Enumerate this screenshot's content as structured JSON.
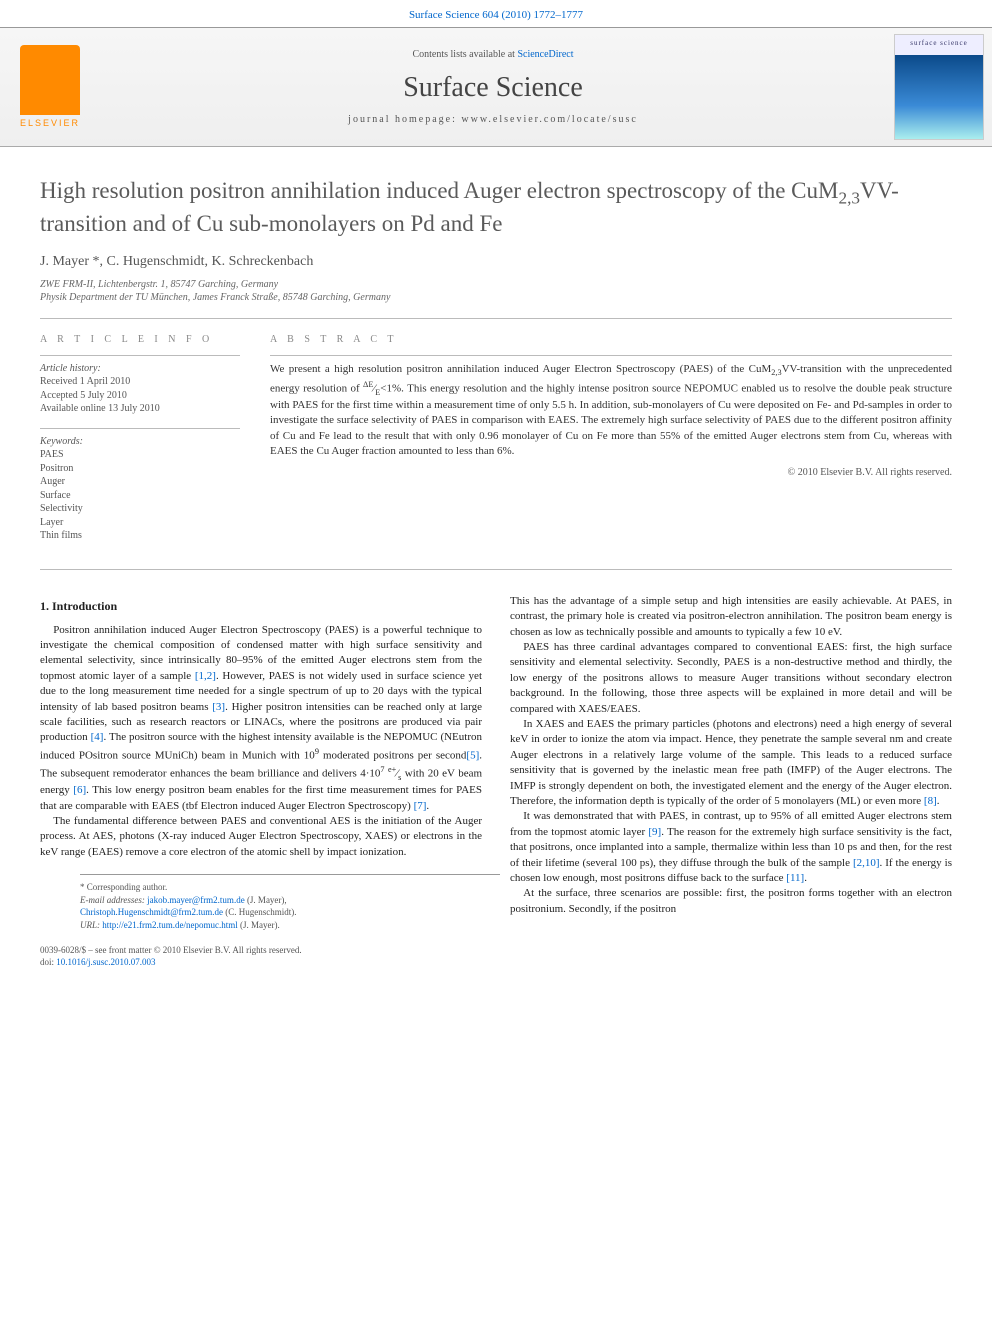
{
  "top_link": {
    "text": "Surface Science 604 (2010) 1772–1777",
    "color": "#0066cc"
  },
  "header": {
    "elsevier_label": "ELSEVIER",
    "contents_prefix": "Contents lists available at ",
    "contents_link": "ScienceDirect",
    "journal_name": "Surface Science",
    "homepage_prefix": "journal homepage: ",
    "homepage_url": "www.elsevier.com/locate/susc",
    "cover_label": "surface science"
  },
  "title_html": "High resolution positron annihilation induced Auger electron spectroscopy of the CuM<sub>2,3</sub>VV-transition and of Cu sub-monolayers on Pd and Fe",
  "authors": "J. Mayer *, C. Hugenschmidt, K. Schreckenbach",
  "affiliations": [
    "ZWE FRM-II, Lichtenbergstr. 1, 85747 Garching, Germany",
    "Physik Department der TU München, James Franck Straße, 85748 Garching, Germany"
  ],
  "info": {
    "head": "A R T I C L E   I N F O",
    "history_label": "Article history:",
    "history": [
      "Received 1 April 2010",
      "Accepted 5 July 2010",
      "Available online 13 July 2010"
    ],
    "keywords_label": "Keywords:",
    "keywords": [
      "PAES",
      "Positron",
      "Auger",
      "Surface",
      "Selectivity",
      "Layer",
      "Thin films"
    ]
  },
  "abstract": {
    "head": "A B S T R A C T",
    "body_html": "We present a high resolution positron annihilation induced Auger Electron Spectroscopy (PAES) of the CuM<sub>2,3</sub>VV-transition with the unprecedented energy resolution of <sup>ΔE</sup>⁄<sub>E</sub>&lt;1%. This energy resolution and the highly intense positron source NEPOMUC enabled us to resolve the double peak structure with PAES for the first time within a measurement time of only 5.5 h. In addition, sub-monolayers of Cu were deposited on Fe- and Pd-samples in order to investigate the surface selectivity of PAES in comparison with EAES. The extremely high surface selectivity of PAES due to the different positron affinity of Cu and Fe lead to the result that with only 0.96 monolayer of Cu on Fe more than 55% of the emitted Auger electrons stem from Cu, whereas with EAES the Cu Auger fraction amounted to less than 6%.",
    "copyright": "© 2010 Elsevier B.V. All rights reserved."
  },
  "section1_head": "1. Introduction",
  "body_paragraphs": [
    "Positron annihilation induced Auger Electron Spectroscopy (PAES) is a powerful technique to investigate the chemical composition of condensed matter with high surface sensitivity and elemental selectivity, since intrinsically 80–95% of the emitted Auger electrons stem from the topmost atomic layer of a sample <a class='ref' href='#'>[1,2]</a>. However, PAES is not widely used in surface science yet due to the long measurement time needed for a single spectrum of up to 20 days with the typical intensity of lab based positron beams <a class='ref' href='#'>[3]</a>. Higher positron intensities can be reached only at large scale facilities, such as research reactors or LINACs, where the positrons are produced via pair production <a class='ref' href='#'>[4]</a>. The positron source with the highest intensity available is the NEPOMUC (NEutron induced POsitron source MUniCh) beam in Munich with 10<sup>9</sup> moderated positrons per second<a class='ref' href='#'>[5]</a>. The subsequent remoderator enhances the beam brilliance and delivers 4·10<sup>7</sup> <sup>e+</sup>⁄<sub>s</sub> with 20 eV beam energy <a class='ref' href='#'>[6]</a>. This low energy positron beam enables for the first time measurement times for PAES that are comparable with EAES (tbf Electron induced Auger Electron Spectroscopy) <a class='ref' href='#'>[7]</a>.",
    "The fundamental difference between PAES and conventional AES is the initiation of the Auger process. At AES, photons (X-ray induced Auger Electron Spectroscopy, XAES) or electrons in the keV range (EAES) remove a core electron of the atomic shell by impact ionization.",
    "This has the advantage of a simple setup and high intensities are easily achievable. At PAES, in contrast, the primary hole is created via positron-electron annihilation. The positron beam energy is chosen as low as technically possible and amounts to typically a few 10 eV.",
    "PAES has three cardinal advantages compared to conventional EAES: first, the high surface sensitivity and elemental selectivity. Secondly, PAES is a non-destructive method and thirdly, the low energy of the positrons allows to measure Auger transitions without secondary electron background. In the following, those three aspects will be explained in more detail and will be compared with XAES/EAES.",
    "In XAES and EAES the primary particles (photons and electrons) need a high energy of several keV in order to ionize the atom via impact. Hence, they penetrate the sample several nm and create Auger electrons in a relatively large volume of the sample. This leads to a reduced surface sensitivity that is governed by the inelastic mean free path (IMFP) of the Auger electrons. The IMFP is strongly dependent on both, the investigated element and the energy of the Auger electron. Therefore, the information depth is typically of the order of 5 monolayers (ML) or even more <a class='ref' href='#'>[8]</a>.",
    "It was demonstrated that with PAES, in contrast, up to 95% of all emitted Auger electrons stem from the topmost atomic layer <a class='ref' href='#'>[9]</a>. The reason for the extremely high surface sensitivity is the fact, that positrons, once implanted into a sample, thermalize within less than 10 ps and then, for the rest of their lifetime (several 100 ps), they diffuse through the bulk of the sample <a class='ref' href='#'>[2,10]</a>. If the energy is chosen low enough, most positrons diffuse back to the surface <a class='ref' href='#'>[11]</a>.",
    "At the surface, three scenarios are possible: first, the positron forms together with an electron positronium. Secondly, if the positron"
  ],
  "footer": {
    "corr_label": "* Corresponding author.",
    "email_label": "E-mail addresses: ",
    "email1": "jakob.mayer@frm2.tum.de",
    "email1_who": " (J. Mayer),",
    "email2": "Christoph.Hugenschmidt@frm2.tum.de",
    "email2_who": " (C. Hugenschmidt).",
    "url_label": "URL: ",
    "url": "http://e21.frm2.tum.de/nepomuc.html",
    "url_who": " (J. Mayer)."
  },
  "bottom": {
    "issn_line": "0039-6028/$ – see front matter © 2010 Elsevier B.V. All rights reserved.",
    "doi_prefix": "doi:",
    "doi": "10.1016/j.susc.2010.07.003"
  },
  "colors": {
    "link": "#0066cc",
    "text": "#333333",
    "muted": "#555555",
    "rule": "#bbbbbb",
    "elsevier_orange": "#ff8a00"
  }
}
